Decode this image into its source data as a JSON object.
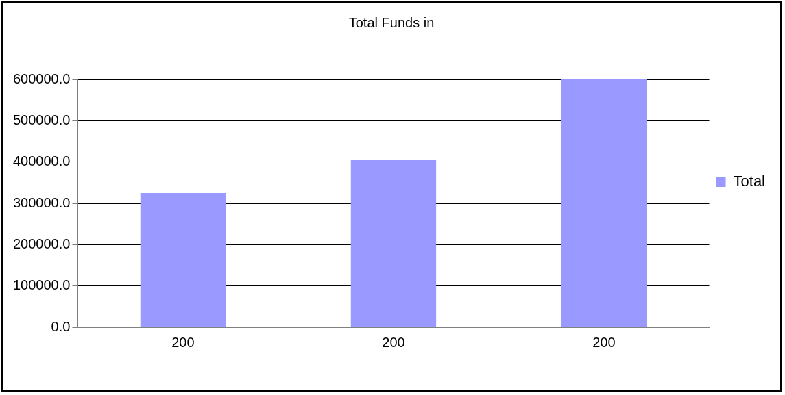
{
  "chart_data": {
    "type": "bar",
    "title": "Total Funds in",
    "categories": [
      "200",
      "200",
      "200"
    ],
    "series": [
      {
        "name": "Total",
        "color": "#9999ff",
        "values": [
          325000,
          405000,
          600000
        ]
      }
    ],
    "ylim": [
      0,
      600000
    ],
    "yticks": [
      {
        "value": 0,
        "label": "0.0"
      },
      {
        "value": 100000,
        "label": "100000.0"
      },
      {
        "value": 200000,
        "label": "200000.0"
      },
      {
        "value": 300000,
        "label": "300000.0"
      },
      {
        "value": 400000,
        "label": "400000.0"
      },
      {
        "value": 500000,
        "label": "500000.0"
      },
      {
        "value": 600000,
        "label": "600000.0"
      }
    ],
    "grid": "y",
    "legend": "right"
  }
}
